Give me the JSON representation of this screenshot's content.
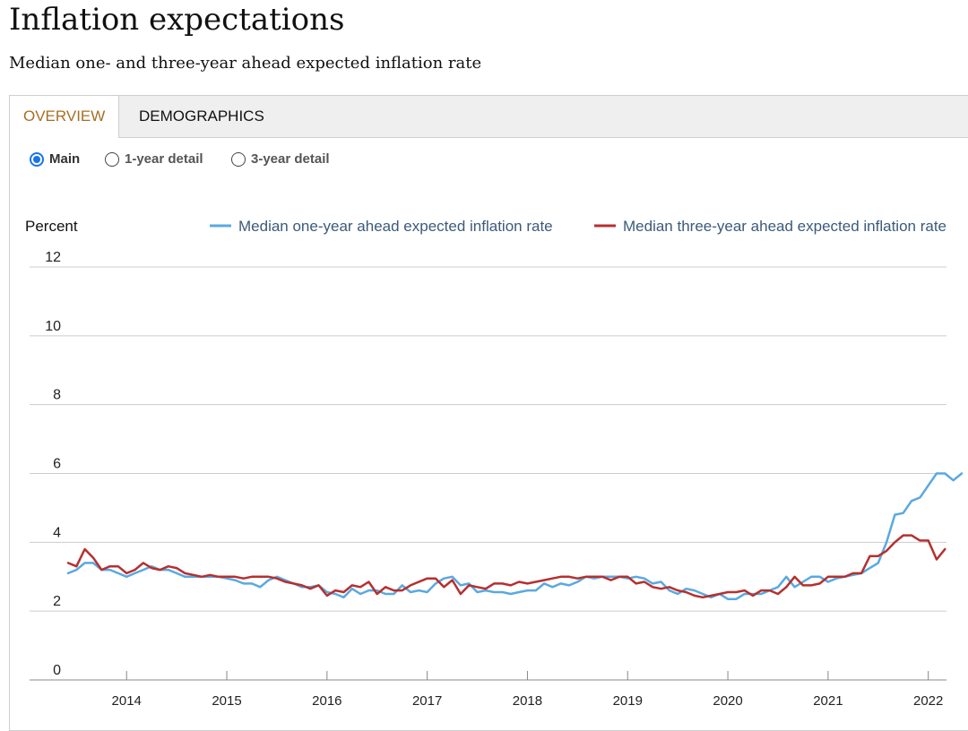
{
  "header": {
    "title": "Inflation expectations",
    "subtitle": "Median one- and three-year ahead expected inflation rate"
  },
  "tabs": [
    {
      "label": "OVERVIEW",
      "active": true
    },
    {
      "label": "DEMOGRAPHICS",
      "active": false
    }
  ],
  "view_options": [
    {
      "label": "Main",
      "selected": true
    },
    {
      "label": "1-year detail",
      "selected": false
    },
    {
      "label": "3-year detail",
      "selected": false
    }
  ],
  "colors": {
    "accent_tab": "#a66f23",
    "radio_selected": "#1a73e8",
    "series_one_year": "#5aa9e0",
    "series_three_year": "#b5302f",
    "grid": "#cccccc"
  },
  "chart_data": {
    "type": "line",
    "ylabel": "Percent",
    "ylim": [
      0,
      12
    ],
    "yticks": [
      "12",
      "10",
      "8",
      "6",
      "4",
      "2",
      "0"
    ],
    "xticks": [
      "2014",
      "2015",
      "2016",
      "2017",
      "2018",
      "2019",
      "2020",
      "2021",
      "2022"
    ],
    "x_start": "2013-06",
    "x_end": "2022-02",
    "grid": "horizontal",
    "legend_position": "top",
    "series": [
      {
        "name": "Median one-year ahead expected inflation rate",
        "color": "#5aa9e0",
        "values": [
          3.1,
          3.2,
          3.4,
          3.4,
          3.2,
          3.2,
          3.1,
          3.0,
          3.1,
          3.2,
          3.3,
          3.2,
          3.2,
          3.1,
          3.0,
          3.0,
          3.0,
          3.0,
          3.0,
          2.95,
          2.9,
          2.8,
          2.8,
          2.7,
          2.9,
          3.0,
          2.9,
          2.8,
          2.7,
          2.7,
          2.75,
          2.55,
          2.5,
          2.4,
          2.65,
          2.5,
          2.6,
          2.6,
          2.5,
          2.5,
          2.75,
          2.55,
          2.6,
          2.55,
          2.8,
          2.95,
          3.0,
          2.75,
          2.8,
          2.55,
          2.6,
          2.55,
          2.55,
          2.5,
          2.55,
          2.6,
          2.6,
          2.8,
          2.7,
          2.8,
          2.75,
          2.85,
          3.0,
          2.95,
          3.0,
          3.0,
          3.0,
          2.95,
          3.0,
          2.95,
          2.8,
          2.85,
          2.6,
          2.5,
          2.65,
          2.6,
          2.5,
          2.4,
          2.5,
          2.35,
          2.35,
          2.5,
          2.5,
          2.5,
          2.6,
          2.7,
          3.0,
          2.7,
          2.85,
          3.0,
          3.0,
          2.85,
          2.95,
          3.0,
          3.05,
          3.1,
          3.25,
          3.4,
          4.0,
          4.8,
          4.85,
          5.2,
          5.3,
          5.65,
          6.0,
          6.0,
          5.8,
          6.0
        ]
      },
      {
        "name": "Median three-year ahead expected inflation rate",
        "color": "#b5302f",
        "values": [
          3.4,
          3.3,
          3.8,
          3.55,
          3.2,
          3.3,
          3.3,
          3.1,
          3.2,
          3.4,
          3.25,
          3.2,
          3.3,
          3.25,
          3.1,
          3.05,
          3.0,
          3.05,
          3.0,
          3.0,
          3.0,
          2.95,
          3.0,
          3.0,
          3.0,
          2.95,
          2.85,
          2.8,
          2.75,
          2.65,
          2.75,
          2.45,
          2.6,
          2.55,
          2.75,
          2.7,
          2.85,
          2.5,
          2.7,
          2.6,
          2.6,
          2.75,
          2.85,
          2.95,
          2.95,
          2.7,
          2.9,
          2.5,
          2.75,
          2.7,
          2.65,
          2.8,
          2.8,
          2.75,
          2.85,
          2.8,
          2.85,
          2.9,
          2.95,
          3.0,
          3.0,
          2.95,
          3.0,
          3.0,
          3.0,
          2.9,
          3.0,
          3.0,
          2.8,
          2.85,
          2.7,
          2.65,
          2.7,
          2.6,
          2.55,
          2.45,
          2.4,
          2.45,
          2.5,
          2.55,
          2.55,
          2.6,
          2.45,
          2.6,
          2.6,
          2.5,
          2.7,
          3.0,
          2.75,
          2.75,
          2.8,
          3.0,
          3.0,
          3.0,
          3.1,
          3.1,
          3.6,
          3.6,
          3.75,
          4.0,
          4.2,
          4.2,
          4.05,
          4.05,
          3.5,
          3.8
        ]
      }
    ]
  }
}
